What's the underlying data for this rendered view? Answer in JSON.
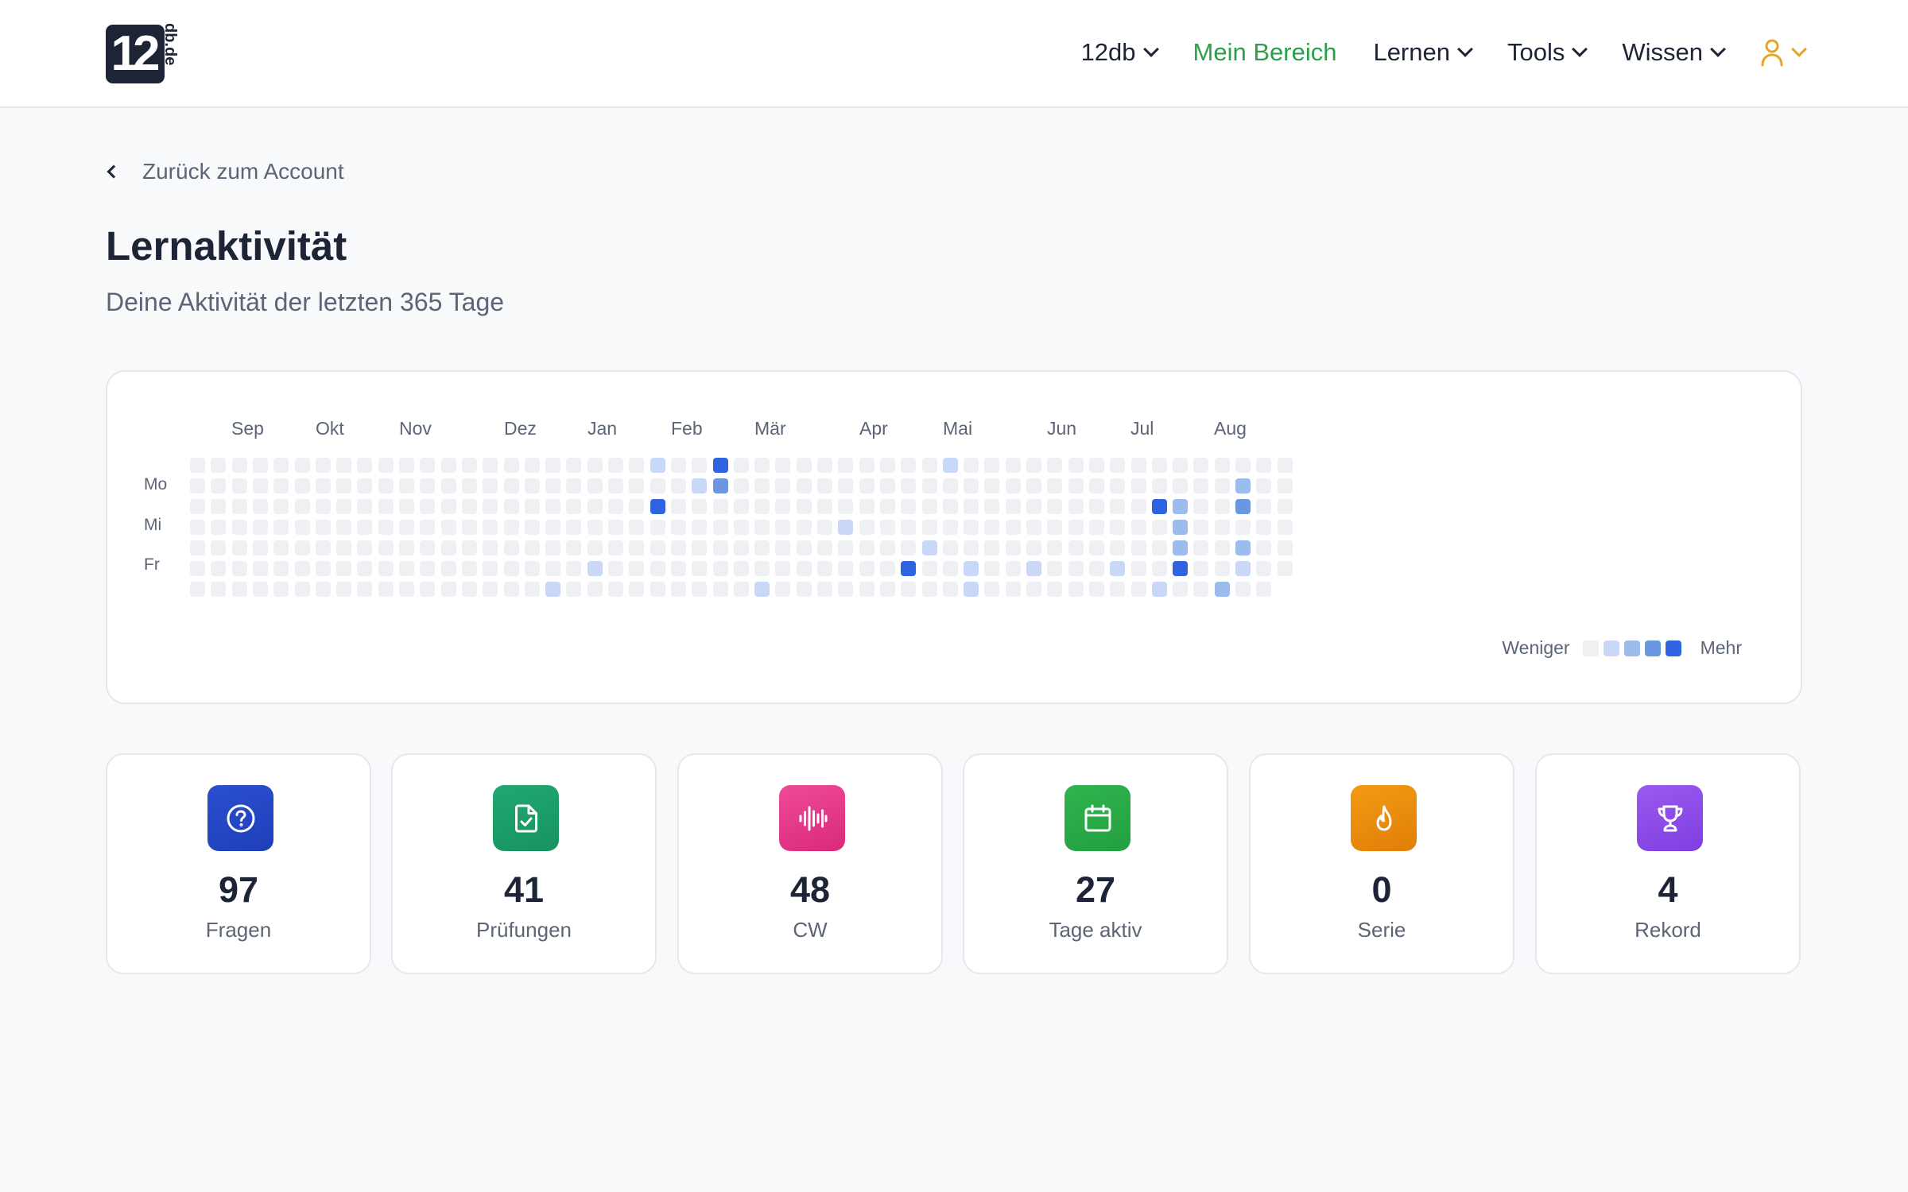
{
  "header": {
    "logo_main": "12",
    "logo_side": "db.de",
    "nav": [
      {
        "label": "12db",
        "has_chevron": true,
        "active": false
      },
      {
        "label": "Mein Bereich",
        "has_chevron": false,
        "active": true
      },
      {
        "label": "Lernen",
        "has_chevron": true,
        "active": false
      },
      {
        "label": "Tools",
        "has_chevron": true,
        "active": false
      },
      {
        "label": "Wissen",
        "has_chevron": true,
        "active": false
      }
    ],
    "user_icon": "user-icon",
    "accent_color": "#2aa04a",
    "user_color": "#e5a42a"
  },
  "back_link": "Zurück zum Account",
  "title": "Lernaktivität",
  "subtitle": "Deine Aktivität der letzten 365 Tage",
  "heatmap": {
    "months": [
      "Sep",
      "Okt",
      "Nov",
      "Dez",
      "Jan",
      "Feb",
      "Mär",
      "Apr",
      "Mai",
      "Jun",
      "Jul",
      "Aug"
    ],
    "day_labels": [
      "Mo",
      "Mi",
      "Fr"
    ],
    "weeks": 53,
    "levels": [
      "#eef0f4",
      "#c9d8f6",
      "#9dbcee",
      "#6a97e0",
      "#2f63e0"
    ],
    "active_cells": [
      {
        "week": 22,
        "day": 0,
        "level": 1
      },
      {
        "week": 25,
        "day": 0,
        "level": 4
      },
      {
        "week": 36,
        "day": 0,
        "level": 1
      },
      {
        "week": 24,
        "day": 1,
        "level": 1
      },
      {
        "week": 25,
        "day": 1,
        "level": 3
      },
      {
        "week": 50,
        "day": 1,
        "level": 2
      },
      {
        "week": 22,
        "day": 2,
        "level": 4
      },
      {
        "week": 46,
        "day": 2,
        "level": 4
      },
      {
        "week": 47,
        "day": 2,
        "level": 2
      },
      {
        "week": 50,
        "day": 2,
        "level": 3
      },
      {
        "week": 31,
        "day": 3,
        "level": 1
      },
      {
        "week": 47,
        "day": 3,
        "level": 2
      },
      {
        "week": 35,
        "day": 4,
        "level": 1
      },
      {
        "week": 47,
        "day": 4,
        "level": 2
      },
      {
        "week": 50,
        "day": 4,
        "level": 2
      },
      {
        "week": 19,
        "day": 5,
        "level": 1
      },
      {
        "week": 34,
        "day": 5,
        "level": 4
      },
      {
        "week": 37,
        "day": 5,
        "level": 1
      },
      {
        "week": 40,
        "day": 5,
        "level": 1
      },
      {
        "week": 44,
        "day": 5,
        "level": 1
      },
      {
        "week": 47,
        "day": 5,
        "level": 4
      },
      {
        "week": 50,
        "day": 5,
        "level": 1
      },
      {
        "week": 17,
        "day": 6,
        "level": 1
      },
      {
        "week": 27,
        "day": 6,
        "level": 1
      },
      {
        "week": 37,
        "day": 6,
        "level": 1
      },
      {
        "week": 46,
        "day": 6,
        "level": 1
      },
      {
        "week": 49,
        "day": 6,
        "level": 2
      }
    ],
    "legend_less": "Weniger",
    "legend_more": "Mehr"
  },
  "stats": [
    {
      "value": "97",
      "label": "Fragen",
      "icon": "question-icon",
      "color_a": "#2a4fd0",
      "color_b": "#1f3fb8"
    },
    {
      "value": "41",
      "label": "Prüfungen",
      "icon": "file-check-icon",
      "color_a": "#22a872",
      "color_b": "#16935f"
    },
    {
      "value": "48",
      "label": "CW",
      "icon": "audio-wave-icon",
      "color_a": "#ee4a98",
      "color_b": "#d92a7a"
    },
    {
      "value": "27",
      "label": "Tage aktiv",
      "icon": "calendar-icon",
      "color_a": "#2fb44e",
      "color_b": "#22a040"
    },
    {
      "value": "0",
      "label": "Serie",
      "icon": "flame-icon",
      "color_a": "#f39a14",
      "color_b": "#e07f08"
    },
    {
      "value": "4",
      "label": "Rekord",
      "icon": "trophy-icon",
      "color_a": "#9b59f0",
      "color_b": "#7f3fe0"
    }
  ]
}
